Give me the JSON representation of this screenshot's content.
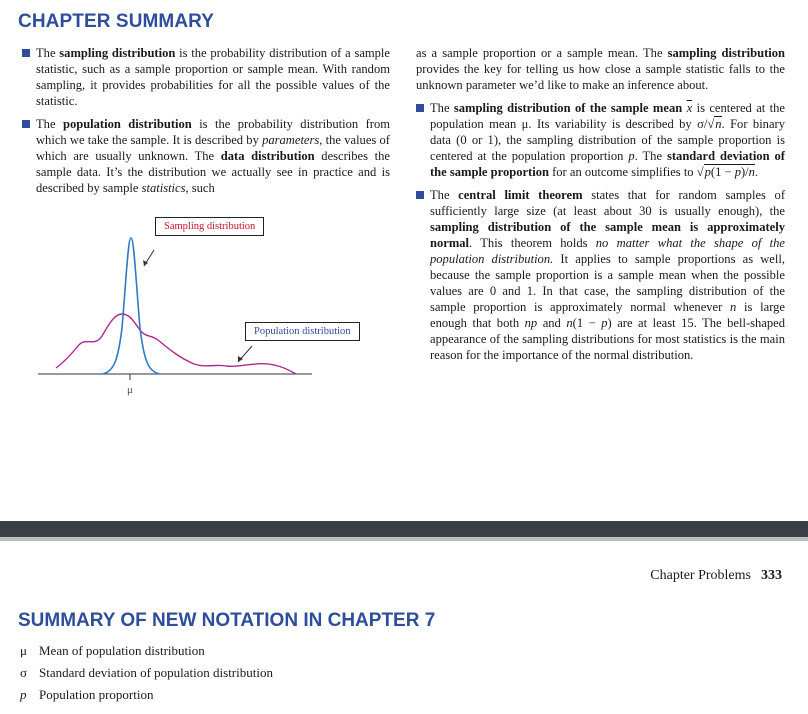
{
  "chapter_summary": {
    "title": "CHAPTER SUMMARY",
    "bullets": [
      {
        "id": "b1",
        "html": "The <b>sampling distribution</b> is the probability distribution of a sample statistic, such as a sample proportion or sample mean. With random sampling, it provides probabilities for all the possible values of the statistic."
      },
      {
        "id": "b2",
        "html": "The <b>population distribution</b> is the probability distribution from which we take the sample. It is described by <i>parameters</i>, the values of which are usually unknown. The <b>data distribution</b> describes the sample data. It’s the distribution we actually see in practice and is described by sample <i>statistics</i>, such"
      },
      {
        "id": "b2cont",
        "html": "as a sample proportion or a sample mean. The <b>sampling distribution</b> provides the key for telling us how close a sample statistic falls to the unknown parameter we’d like to make an inference about."
      },
      {
        "id": "b3",
        "html": "The <b>sampling distribution of the sample mean</b> <span class=\"ov\"><i>x</i></span> is centered at the population mean μ. Its variability is described by σ/√<span class=\"sqrt\"><i>n</i></span>. For binary data (0 or 1), the sampling distribution of the sample proportion is centered at the population proportion <i>p</i>. The <b>standard deviation of the sample proportion</b> for an outcome simplifies to √<span class=\"sqrt\"><i>p</i>(1 − <i>p</i>)/<i>n</i></span>."
      },
      {
        "id": "b4",
        "html": "The <b>central limit theorem</b> states that for random samples of sufficiently large size (at least about 30 is usually enough), the <b>sampling distribution of the sample mean is approximately normal</b>. This theorem holds <i>no matter what the shape of the population distribution.</i> It applies to sample proportions as well, because the sample proportion is a sample mean when the possible values are 0 and 1. In that case, the sampling distribution of the sample proportion is approximately normal whenever <i>n</i> is large enough that both <i>np</i> and <i>n</i>(1 − <i>p</i>) are at least 15. The bell-shaped appearance of the sampling distributions for most statistics is the main reason for the importance of the normal distribution."
      }
    ]
  },
  "figure": {
    "sampling_label": "Sampling distribution",
    "population_label": "Population distribution",
    "mu_label": "μ",
    "sampling_color": "#2e7bc4",
    "population_color": "#b0288f"
  },
  "footer": {
    "running_title": "Chapter Problems",
    "page_number": "333"
  },
  "notation": {
    "title": "SUMMARY OF NEW NOTATION IN CHAPTER 7",
    "items": [
      {
        "symbol": "μ",
        "text": "Mean of population distribution",
        "italic": false
      },
      {
        "symbol": "σ",
        "text": "Standard deviation of population distribution",
        "italic": false
      },
      {
        "symbol": "p",
        "text": "Population proportion",
        "italic": true
      }
    ]
  }
}
